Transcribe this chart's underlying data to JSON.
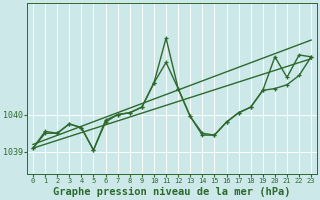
{
  "bg_color": "#cce8e8",
  "grid_color": "#ffffff",
  "line_color": "#2d6a2d",
  "marker_color": "#2d6a2d",
  "title": "Graphe pression niveau de la mer (hPa)",
  "title_fontsize": 7.5,
  "ylim": [
    1038.4,
    1043.0
  ],
  "yticks": [
    1039,
    1040
  ],
  "xlim": [
    -0.5,
    23.5
  ],
  "series": [
    {
      "x": [
        0,
        23
      ],
      "y": [
        1039.1,
        1041.5
      ],
      "has_markers": false,
      "linewidth": 1.0
    },
    {
      "x": [
        0,
        23
      ],
      "y": [
        1039.2,
        1042.0
      ],
      "has_markers": false,
      "linewidth": 1.0
    },
    {
      "x": [
        0,
        1,
        2,
        3,
        4,
        5,
        6,
        7,
        8,
        9,
        10,
        11,
        12,
        13,
        14,
        15,
        16,
        17,
        18,
        19,
        20,
        21,
        22,
        23
      ],
      "y": [
        1039.1,
        1039.55,
        1039.5,
        1039.75,
        1039.65,
        1039.05,
        1039.85,
        1040.0,
        1040.05,
        1040.2,
        1040.85,
        1041.4,
        1040.7,
        1039.95,
        1039.5,
        1039.45,
        1039.8,
        1040.05,
        1040.2,
        1040.65,
        1040.7,
        1040.8,
        1041.05,
        1041.55
      ],
      "has_markers": true,
      "linewidth": 1.0
    },
    {
      "x": [
        0,
        1,
        2,
        3,
        4,
        5,
        6,
        7,
        8,
        9,
        10,
        11,
        12,
        13,
        14,
        15,
        16,
        17,
        18,
        19,
        20,
        21,
        22,
        23
      ],
      "y": [
        1039.1,
        1039.5,
        1039.5,
        1039.75,
        1039.65,
        1039.05,
        1039.8,
        1040.0,
        1040.05,
        1040.2,
        1040.85,
        1042.05,
        1040.7,
        1039.95,
        1039.45,
        1039.45,
        1039.8,
        1040.05,
        1040.2,
        1040.65,
        1041.55,
        1041.0,
        1041.6,
        1041.55
      ],
      "has_markers": true,
      "linewidth": 1.0
    }
  ],
  "xlabel_ticks": [
    "0",
    "1",
    "2",
    "3",
    "4",
    "5",
    "6",
    "7",
    "8",
    "9",
    "10",
    "11",
    "12",
    "13",
    "14",
    "15",
    "16",
    "17",
    "18",
    "19",
    "20",
    "21",
    "22",
    "23"
  ]
}
